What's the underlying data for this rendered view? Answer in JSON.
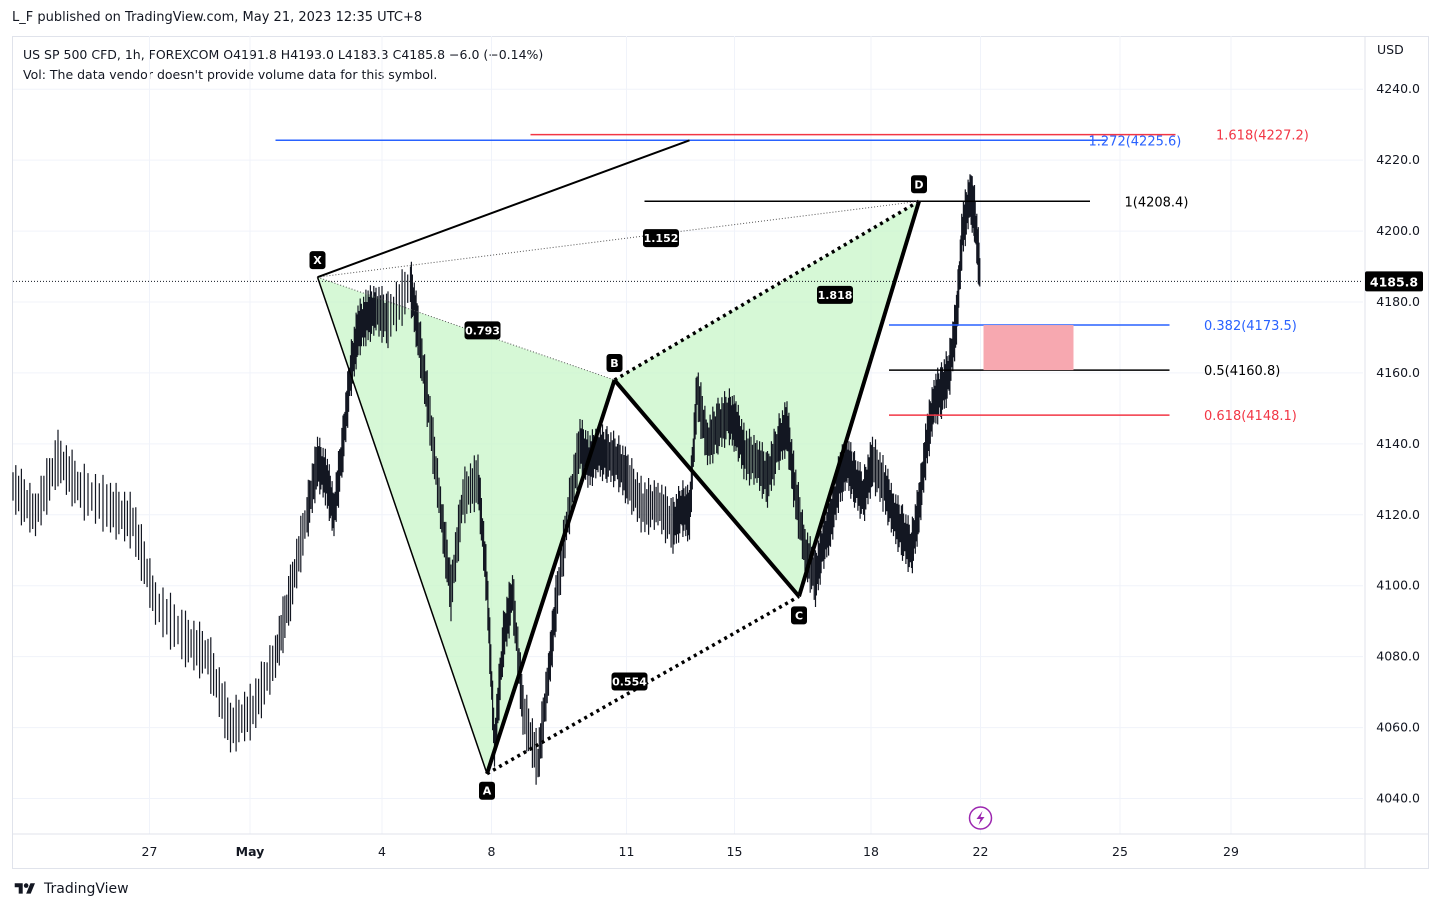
{
  "header": {
    "publisher": "L_F published on TradingView.com, May 21, 2023 12:35 UTC+8"
  },
  "legend": {
    "symbol": "US SP 500 CFD, 1h, FOREXCOM",
    "ohlc": "O4191.8  H4193.0  L4183.3  C4185.8",
    "change": "−6.0 (−0.14%)",
    "volume_note": "Vol: The data vendor doesn't provide volume data for this symbol."
  },
  "axis": {
    "currency": "USD"
  },
  "footer": {
    "brand": "TradingView"
  },
  "colors": {
    "pattern_fill": "#c8f5c8",
    "pattern_line": "#000000",
    "fib_blue": "#2962ff",
    "fib_red": "#f23645",
    "fib_black": "#000000",
    "zone_fill": "#f7a8b0",
    "candle": "#131722",
    "price_tag": "#000000"
  },
  "chart_data": {
    "type": "line",
    "title": "",
    "ylabel": "",
    "ylim": [
      4030,
      4255
    ],
    "x_ticks": [
      "27",
      "May",
      "4",
      "8",
      "11",
      "15",
      "18",
      "22",
      "25",
      "29"
    ],
    "y_ticks": [
      "4040.0",
      "4060.0",
      "4080.0",
      "4100.0",
      "4120.0",
      "4140.0",
      "4160.0",
      "4180.0",
      "4200.0",
      "4220.0",
      "4240.0"
    ],
    "last_price": {
      "value": 4185.8,
      "label": "4185.8"
    },
    "series": [
      {
        "name": "",
        "x": [
          0,
          1.5,
          3,
          4.5,
          6.5,
          8,
          9.5,
          11.5,
          13,
          14.5,
          16,
          17.5,
          18.5,
          19.6,
          20.3,
          20.9,
          21.4,
          22,
          22.5,
          23,
          23.6,
          24.2,
          25,
          26.5,
          27,
          27.7,
          28.5,
          29.2,
          30,
          31,
          31.6,
          32.1,
          32.7,
          33.3,
          34,
          35,
          35.7,
          36.2,
          37,
          37.8,
          38.4,
          39,
          39.6,
          40.3,
          41,
          42,
          43,
          44,
          44.6,
          45.1,
          45.6,
          46.3,
          47,
          47.7,
          48.2,
          48.8,
          49.6,
          50.3,
          51,
          51.6,
          52.1,
          52.8,
          53.5,
          54,
          54.5,
          55.1,
          55.6,
          56.1,
          56.7,
          57.3,
          58.1,
          58.7,
          59.3,
          59.9,
          60.4,
          60.9,
          61.4,
          61.9,
          62.4,
          62.9,
          63.3,
          63.8,
          64.1,
          64.5
        ],
        "values": [
          4128,
          4120,
          4136,
          4127,
          4122,
          4118,
          4095,
          4085,
          4080,
          4060,
          4065,
          4080,
          4098,
          4120,
          4135,
          4130,
          4120,
          4140,
          4160,
          4172,
          4176,
          4178,
          4175,
          4185,
          4172,
          4150,
          4122,
          4098,
          4125,
          4130,
          4100,
          4055,
          4085,
          4098,
          4065,
          4050,
          4075,
          4095,
          4120,
          4140,
          4135,
          4138,
          4137,
          4135,
          4130,
          4122,
          4123,
          4117,
          4122,
          4120,
          4155,
          4140,
          4145,
          4148,
          4145,
          4137,
          4135,
          4130,
          4140,
          4145,
          4128,
          4110,
          4102,
          4112,
          4118,
          4130,
          4135,
          4130,
          4125,
          4135,
          4128,
          4120,
          4115,
          4110,
          4122,
          4140,
          4152,
          4155,
          4160,
          4175,
          4200,
          4210,
          4205,
          4186
        ]
      }
    ],
    "harmonic_pattern": {
      "points": [
        {
          "label": "X",
          "x": 20.3,
          "price": 4187
        },
        {
          "label": "A",
          "x": 31.6,
          "price": 4047
        },
        {
          "label": "B",
          "x": 40.1,
          "price": 4158
        },
        {
          "label": "C",
          "x": 52.4,
          "price": 4097
        },
        {
          "label": "D",
          "x": 60.4,
          "price": 4208.4
        }
      ],
      "ratios": [
        {
          "label": "0.793",
          "x": 31.3,
          "price": 4172
        },
        {
          "label": "1.818",
          "x": 54.8,
          "price": 4182
        },
        {
          "label": "0.554",
          "x": 41.1,
          "price": 4073
        },
        {
          "label": "1.152",
          "x": 43.2,
          "price": 4198
        }
      ],
      "x_extension_price": 4225.6
    },
    "fib_levels": [
      {
        "label": "1.272(4225.6)",
        "price": 4225.6,
        "color": "#2962ff",
        "x_from": 17.5,
        "x_to": 72.9,
        "label_x": 71.7
      },
      {
        "label": "1.618(4227.2)",
        "price": 4227.2,
        "color": "#f23645",
        "x_from": 34.5,
        "x_to": 77.5,
        "label_x": 80.2
      },
      {
        "label": "1(4208.4)",
        "price": 4208.4,
        "color": "#000000",
        "x_from": 42.1,
        "x_to": 71.8,
        "label_x": 74.1
      },
      {
        "label": "0.382(4173.5)",
        "price": 4173.5,
        "color": "#2962ff",
        "x_from": 58.4,
        "x_to": 77.1,
        "label_x": 79.4
      },
      {
        "label": "0.5(4160.8)",
        "price": 4160.8,
        "color": "#000000",
        "x_from": 58.4,
        "x_to": 77.1,
        "label_x": 79.4
      },
      {
        "label": "0.618(4148.1)",
        "price": 4148.1,
        "color": "#f23645",
        "x_from": 58.4,
        "x_to": 77.1,
        "label_x": 79.4
      }
    ],
    "target_zone": {
      "x_from": 64.7,
      "x_to": 70.7,
      "price_from": 4160.8,
      "price_to": 4173.5
    }
  }
}
